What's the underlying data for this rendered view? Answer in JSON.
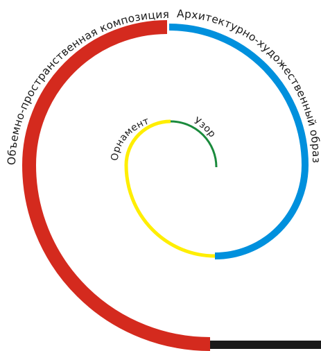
{
  "diagram": {
    "segments": [
      {
        "id": "uzor",
        "color": "#1a8a3c"
      },
      {
        "id": "ornament",
        "color": "#ffee00"
      },
      {
        "id": "arch",
        "color": "#0090dd"
      },
      {
        "id": "volume",
        "color": "#d42a1e"
      },
      {
        "id": "tail",
        "color": "#1a1a1a"
      }
    ],
    "labels": {
      "uzor": "Узор",
      "ornament": "Орнамент",
      "arch": "Архитектурно-художественный образ",
      "volume": "Объемно-пространственная композиция"
    }
  }
}
